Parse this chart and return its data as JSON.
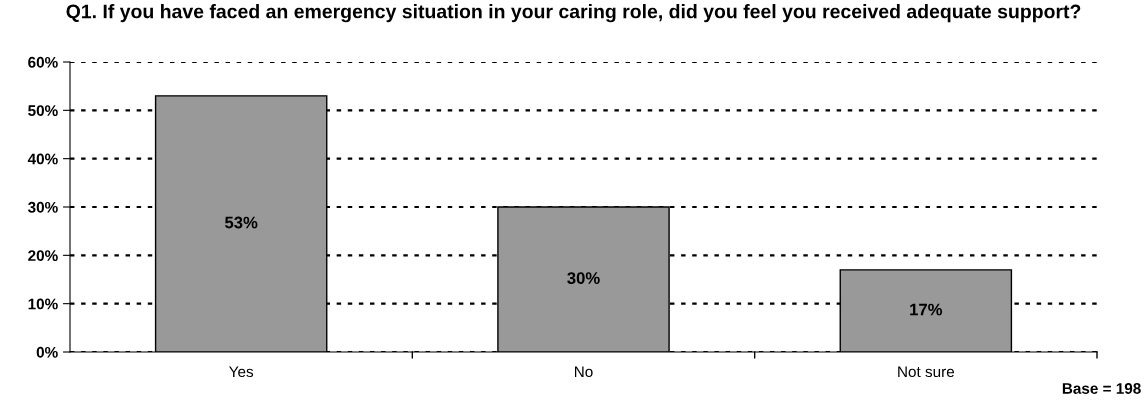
{
  "chart_data": {
    "type": "bar",
    "title": "Q1. If you have faced an emergency situation in your caring role, did you feel you received adequate support?",
    "categories": [
      "Yes",
      "No",
      "Not sure"
    ],
    "values": [
      53,
      30,
      17
    ],
    "color": "#999999",
    "value_labels": [
      "53%",
      "30%",
      "17%"
    ],
    "ylim": [
      0,
      60
    ],
    "yticks": [
      {
        "value": 0,
        "label": "0%"
      },
      {
        "value": 10,
        "label": "10%"
      },
      {
        "value": 20,
        "label": "20%"
      },
      {
        "value": 30,
        "label": "30%"
      },
      {
        "value": 40,
        "label": "40%"
      },
      {
        "value": 50,
        "label": "50%"
      },
      {
        "value": 60,
        "label": "60%"
      }
    ],
    "grid": "y",
    "annotations": [
      "Base = 198"
    ]
  }
}
